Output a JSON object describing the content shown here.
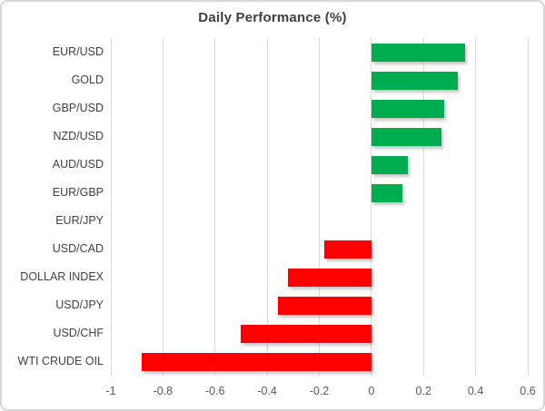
{
  "title": "Daily Performance (%)",
  "colors": {
    "positive": "#00AC50",
    "negative": "#FF0000",
    "grid": "#d9d9d9",
    "frame_border": "#d6d6d6",
    "title_text": "#3f3f3f",
    "category_text": "#404040",
    "tick_text": "#595959"
  },
  "chart_data": {
    "type": "bar",
    "orientation": "horizontal",
    "title": "Daily Performance (%)",
    "categories": [
      "EUR/USD",
      "GOLD",
      "GBP/USD",
      "NZD/USD",
      "AUD/USD",
      "EUR/GBP",
      "EUR/JPY",
      "USD/CAD",
      "DOLLAR INDEX",
      "USD/JPY",
      "USD/CHF",
      "WTI CRUDE OIL"
    ],
    "values": [
      0.36,
      0.33,
      0.28,
      0.27,
      0.14,
      0.12,
      0.0,
      -0.18,
      -0.32,
      -0.36,
      -0.5,
      -0.88
    ],
    "xlabel": "",
    "ylabel": "",
    "xlim": [
      -1,
      0.6
    ],
    "xticks": [
      -1,
      -0.8,
      -0.6,
      -0.4,
      -0.2,
      0,
      0.2,
      0.4,
      0.6
    ],
    "xtick_labels": [
      "-1",
      "-0.8",
      "-0.6",
      "-0.4",
      "-0.2",
      "0",
      "0.2",
      "0.4",
      "0.6"
    ],
    "grid": true,
    "legend": false,
    "value_sign_colors": {
      "positive": "#00AC50",
      "negative": "#FF0000"
    }
  }
}
